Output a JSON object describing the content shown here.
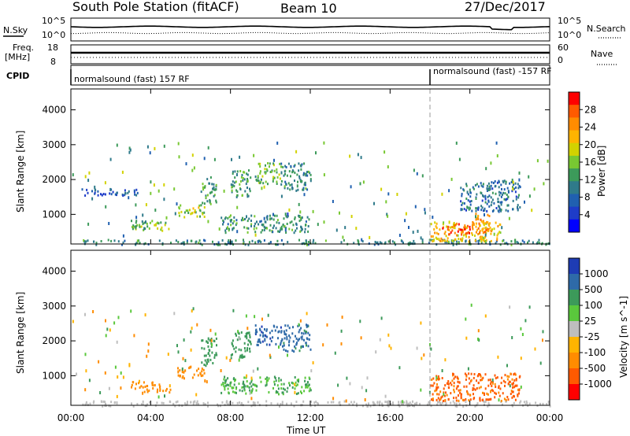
{
  "header": {
    "title": "South Pole Station (fitACF)",
    "beam": "Beam 10",
    "date": "27/Dec/2017"
  },
  "top_panels": {
    "nsky_label": "N.Sky",
    "nsearch_label": "N.Search",
    "noise_ticks": [
      "10^5",
      "10^0"
    ],
    "freq_label": "Freq.",
    "freq_unit": "[MHz]",
    "freq_ticks": [
      "18",
      "8"
    ],
    "nave_label": "Nave",
    "nave_ticks": [
      "60",
      "0"
    ],
    "cpid_label": "CPID",
    "cpid_segments": [
      {
        "label": "normalsound (fast) 157 RF",
        "start_hour": 0
      },
      {
        "label": "normalsound (fast) -157 RF",
        "start_hour": 18
      }
    ]
  },
  "power_colorbar": {
    "label": "Power [dB]",
    "ticks": [
      "28",
      "24",
      "20",
      "16",
      "12",
      "8",
      "4"
    ],
    "colors": [
      "#ff0000",
      "#ff5a00",
      "#ff8c00",
      "#ffb400",
      "#d2d200",
      "#78c832",
      "#3c9a5a",
      "#2f7a8a",
      "#2060b0",
      "#1e3cc8",
      "#0000ff"
    ]
  },
  "velocity_colorbar": {
    "label": "Velocity [m s^-1]",
    "ticks": [
      "1000",
      "500",
      "100",
      "25",
      "-25",
      "-100",
      "-500",
      "-1000"
    ],
    "colors": [
      "#1e3cb4",
      "#2e6aa8",
      "#3c9a5a",
      "#5ac83c",
      "#bebebe",
      "#ffb400",
      "#ff8c00",
      "#ff5a00",
      "#ff0000"
    ]
  },
  "chart_data": [
    {
      "type": "heatmap",
      "name": "power",
      "xlabel": "Time UT",
      "ylabel": "Slant Range [km]",
      "xlim": [
        0,
        24
      ],
      "ylim": [
        150,
        4600
      ],
      "xticks": [
        "00:00",
        "04:00",
        "08:00",
        "12:00",
        "16:00",
        "20:00",
        "00:00"
      ],
      "yticks": [
        1000,
        2000,
        3000,
        4000
      ],
      "vline_hour": 18,
      "regions": [
        {
          "t": [
            0.5,
            24
          ],
          "r": [
            150,
            300
          ],
          "value_db": 10
        },
        {
          "t": [
            0.5,
            3.5
          ],
          "r": [
            1550,
            1750
          ],
          "value_db": 6
        },
        {
          "t": [
            3.0,
            5.0
          ],
          "r": [
            550,
            850
          ],
          "value_db": 14
        },
        {
          "t": [
            5.3,
            6.7
          ],
          "r": [
            950,
            1300
          ],
          "value_db": 16
        },
        {
          "t": [
            6.5,
            7.3
          ],
          "r": [
            1300,
            2100
          ],
          "value_db": 12
        },
        {
          "t": [
            8.0,
            9.0
          ],
          "r": [
            1500,
            2300
          ],
          "value_db": 12
        },
        {
          "t": [
            9.2,
            10.5
          ],
          "r": [
            1900,
            2500
          ],
          "value_db": 14
        },
        {
          "t": [
            10.5,
            12.0
          ],
          "r": [
            1700,
            2500
          ],
          "value_db": 10
        },
        {
          "t": [
            7.5,
            12.0
          ],
          "r": [
            500,
            1000
          ],
          "value_db": 11
        },
        {
          "t": [
            18.0,
            21.5
          ],
          "r": [
            250,
            800
          ],
          "value_db": 20
        },
        {
          "t": [
            18.5,
            20.0
          ],
          "r": [
            450,
            750
          ],
          "value_db": 28
        },
        {
          "t": [
            20.0,
            21.0
          ],
          "r": [
            500,
            1100
          ],
          "value_db": 24
        },
        {
          "t": [
            19.5,
            22.5
          ],
          "r": [
            1100,
            2000
          ],
          "value_db": 8
        }
      ]
    },
    {
      "type": "heatmap",
      "name": "velocity",
      "xlabel": "Time UT",
      "ylabel": "Slant Range [km]",
      "xlim": [
        0,
        24
      ],
      "ylim": [
        150,
        4600
      ],
      "xticks": [
        "00:00",
        "04:00",
        "08:00",
        "12:00",
        "16:00",
        "20:00",
        "00:00"
      ],
      "yticks": [
        1000,
        2000,
        3000,
        4000
      ],
      "vline_hour": 18,
      "regions": [
        {
          "t": [
            0.5,
            24
          ],
          "r": [
            150,
            300
          ],
          "value_ms": 0
        },
        {
          "t": [
            3.0,
            5.0
          ],
          "r": [
            550,
            850
          ],
          "value_ms": -200
        },
        {
          "t": [
            5.3,
            6.7
          ],
          "r": [
            950,
            1300
          ],
          "value_ms": -200
        },
        {
          "t": [
            6.5,
            7.3
          ],
          "r": [
            1300,
            2100
          ],
          "value_ms": 200
        },
        {
          "t": [
            8.0,
            9.0
          ],
          "r": [
            1500,
            2300
          ],
          "value_ms": 300
        },
        {
          "t": [
            9.2,
            10.5
          ],
          "r": [
            1900,
            2500
          ],
          "value_ms": 800
        },
        {
          "t": [
            10.5,
            12.0
          ],
          "r": [
            1700,
            2500
          ],
          "value_ms": 700
        },
        {
          "t": [
            7.5,
            12.0
          ],
          "r": [
            500,
            1000
          ],
          "value_ms": 100
        },
        {
          "t": [
            18.0,
            22.5
          ],
          "r": [
            300,
            1100
          ],
          "value_ms": -600
        },
        {
          "t": [
            14.5,
            17.5
          ],
          "r": [
            150,
            300
          ],
          "value_ms": 0
        }
      ]
    }
  ]
}
